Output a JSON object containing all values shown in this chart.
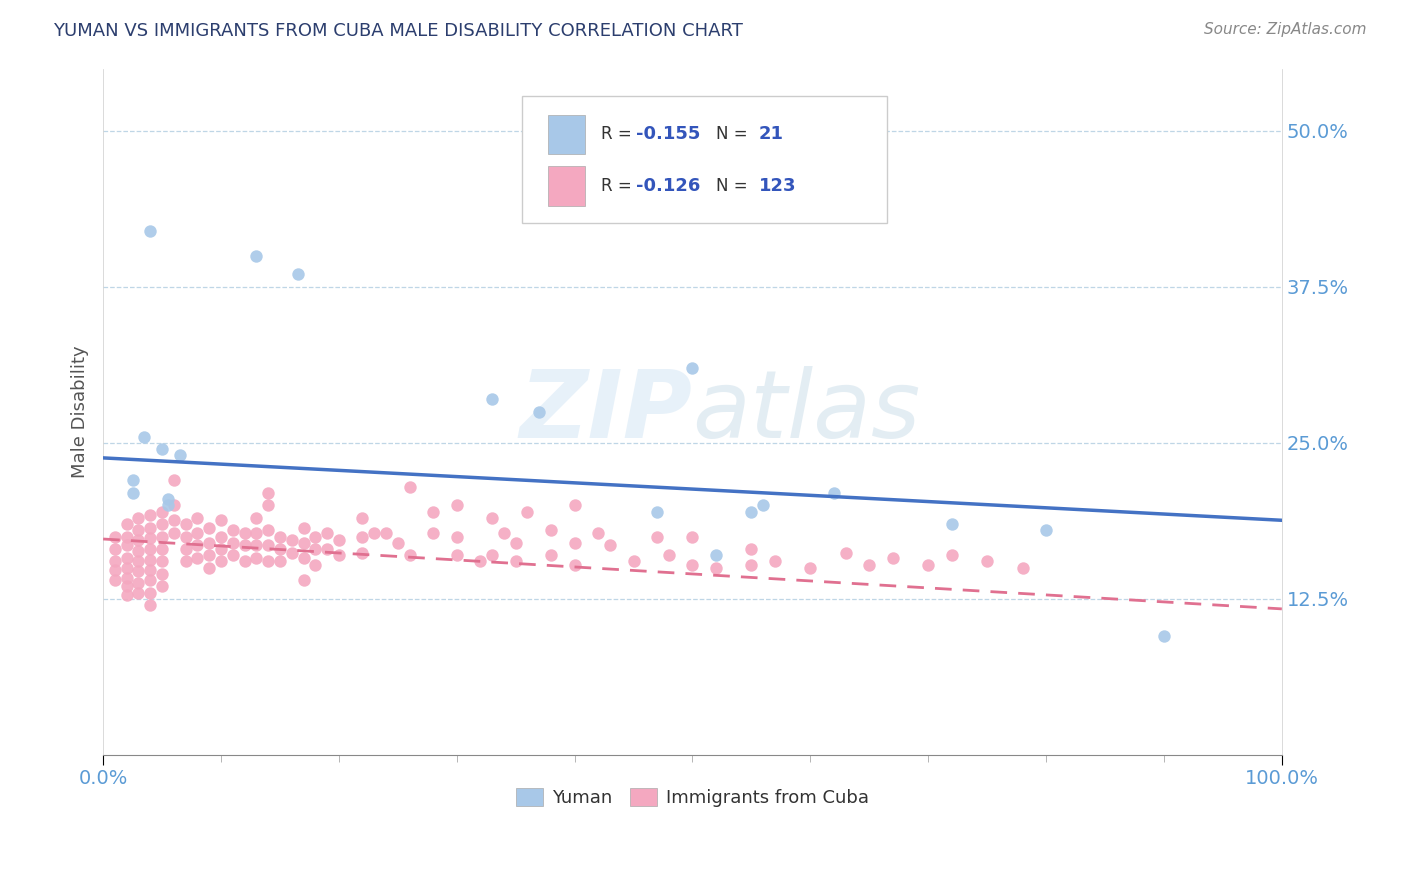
{
  "title": "YUMAN VS IMMIGRANTS FROM CUBA MALE DISABILITY CORRELATION CHART",
  "source": "Source: ZipAtlas.com",
  "ylabel": "Male Disability",
  "watermark": "ZIPatlas",
  "xlim": [
    0.0,
    1.0
  ],
  "ylim": [
    0.0,
    0.55
  ],
  "yticks": [
    0.125,
    0.25,
    0.375,
    0.5
  ],
  "ytick_labels": [
    "12.5%",
    "25.0%",
    "37.5%",
    "50.0%"
  ],
  "xtick_labels": [
    "0.0%",
    "100.0%"
  ],
  "blue_color": "#a8c8e8",
  "pink_color": "#f4a8c0",
  "blue_line_color": "#4472c4",
  "pink_line_color": "#e07090",
  "blue_scatter": [
    [
      0.04,
      0.42
    ],
    [
      0.13,
      0.4
    ],
    [
      0.165,
      0.385
    ],
    [
      0.5,
      0.31
    ],
    [
      0.33,
      0.285
    ],
    [
      0.37,
      0.275
    ],
    [
      0.035,
      0.255
    ],
    [
      0.05,
      0.245
    ],
    [
      0.065,
      0.24
    ],
    [
      0.025,
      0.22
    ],
    [
      0.025,
      0.21
    ],
    [
      0.055,
      0.205
    ],
    [
      0.055,
      0.2
    ],
    [
      0.47,
      0.195
    ],
    [
      0.56,
      0.2
    ],
    [
      0.62,
      0.21
    ],
    [
      0.55,
      0.195
    ],
    [
      0.72,
      0.185
    ],
    [
      0.8,
      0.18
    ],
    [
      0.52,
      0.16
    ],
    [
      0.9,
      0.095
    ]
  ],
  "pink_scatter": [
    [
      0.01,
      0.175
    ],
    [
      0.01,
      0.165
    ],
    [
      0.01,
      0.155
    ],
    [
      0.01,
      0.148
    ],
    [
      0.01,
      0.14
    ],
    [
      0.02,
      0.185
    ],
    [
      0.02,
      0.175
    ],
    [
      0.02,
      0.168
    ],
    [
      0.02,
      0.158
    ],
    [
      0.02,
      0.15
    ],
    [
      0.02,
      0.142
    ],
    [
      0.02,
      0.135
    ],
    [
      0.02,
      0.128
    ],
    [
      0.03,
      0.19
    ],
    [
      0.03,
      0.18
    ],
    [
      0.03,
      0.172
    ],
    [
      0.03,
      0.163
    ],
    [
      0.03,
      0.155
    ],
    [
      0.03,
      0.147
    ],
    [
      0.03,
      0.138
    ],
    [
      0.03,
      0.13
    ],
    [
      0.04,
      0.192
    ],
    [
      0.04,
      0.182
    ],
    [
      0.04,
      0.174
    ],
    [
      0.04,
      0.165
    ],
    [
      0.04,
      0.156
    ],
    [
      0.04,
      0.148
    ],
    [
      0.04,
      0.14
    ],
    [
      0.04,
      0.13
    ],
    [
      0.04,
      0.12
    ],
    [
      0.05,
      0.195
    ],
    [
      0.05,
      0.185
    ],
    [
      0.05,
      0.175
    ],
    [
      0.05,
      0.165
    ],
    [
      0.05,
      0.155
    ],
    [
      0.05,
      0.145
    ],
    [
      0.05,
      0.135
    ],
    [
      0.06,
      0.22
    ],
    [
      0.06,
      0.2
    ],
    [
      0.06,
      0.188
    ],
    [
      0.06,
      0.178
    ],
    [
      0.07,
      0.185
    ],
    [
      0.07,
      0.175
    ],
    [
      0.07,
      0.165
    ],
    [
      0.07,
      0.155
    ],
    [
      0.08,
      0.19
    ],
    [
      0.08,
      0.178
    ],
    [
      0.08,
      0.168
    ],
    [
      0.08,
      0.158
    ],
    [
      0.09,
      0.182
    ],
    [
      0.09,
      0.17
    ],
    [
      0.09,
      0.16
    ],
    [
      0.09,
      0.15
    ],
    [
      0.1,
      0.188
    ],
    [
      0.1,
      0.175
    ],
    [
      0.1,
      0.165
    ],
    [
      0.1,
      0.155
    ],
    [
      0.11,
      0.18
    ],
    [
      0.11,
      0.17
    ],
    [
      0.11,
      0.16
    ],
    [
      0.12,
      0.178
    ],
    [
      0.12,
      0.168
    ],
    [
      0.12,
      0.155
    ],
    [
      0.13,
      0.19
    ],
    [
      0.13,
      0.178
    ],
    [
      0.13,
      0.168
    ],
    [
      0.13,
      0.158
    ],
    [
      0.14,
      0.21
    ],
    [
      0.14,
      0.2
    ],
    [
      0.14,
      0.18
    ],
    [
      0.14,
      0.168
    ],
    [
      0.14,
      0.155
    ],
    [
      0.15,
      0.175
    ],
    [
      0.15,
      0.165
    ],
    [
      0.15,
      0.155
    ],
    [
      0.16,
      0.172
    ],
    [
      0.16,
      0.162
    ],
    [
      0.17,
      0.182
    ],
    [
      0.17,
      0.17
    ],
    [
      0.17,
      0.158
    ],
    [
      0.17,
      0.14
    ],
    [
      0.18,
      0.175
    ],
    [
      0.18,
      0.165
    ],
    [
      0.18,
      0.152
    ],
    [
      0.19,
      0.178
    ],
    [
      0.19,
      0.165
    ],
    [
      0.2,
      0.172
    ],
    [
      0.2,
      0.16
    ],
    [
      0.22,
      0.19
    ],
    [
      0.22,
      0.175
    ],
    [
      0.22,
      0.162
    ],
    [
      0.23,
      0.178
    ],
    [
      0.24,
      0.178
    ],
    [
      0.25,
      0.17
    ],
    [
      0.26,
      0.215
    ],
    [
      0.26,
      0.16
    ],
    [
      0.28,
      0.195
    ],
    [
      0.28,
      0.178
    ],
    [
      0.3,
      0.2
    ],
    [
      0.3,
      0.175
    ],
    [
      0.3,
      0.16
    ],
    [
      0.32,
      0.155
    ],
    [
      0.33,
      0.19
    ],
    [
      0.33,
      0.16
    ],
    [
      0.34,
      0.178
    ],
    [
      0.35,
      0.17
    ],
    [
      0.35,
      0.155
    ],
    [
      0.36,
      0.195
    ],
    [
      0.38,
      0.18
    ],
    [
      0.38,
      0.16
    ],
    [
      0.4,
      0.2
    ],
    [
      0.4,
      0.17
    ],
    [
      0.4,
      0.152
    ],
    [
      0.42,
      0.178
    ],
    [
      0.43,
      0.168
    ],
    [
      0.45,
      0.155
    ],
    [
      0.47,
      0.175
    ],
    [
      0.48,
      0.16
    ],
    [
      0.5,
      0.175
    ],
    [
      0.5,
      0.152
    ],
    [
      0.52,
      0.15
    ],
    [
      0.55,
      0.165
    ],
    [
      0.55,
      0.152
    ],
    [
      0.57,
      0.155
    ],
    [
      0.6,
      0.15
    ],
    [
      0.63,
      0.162
    ],
    [
      0.65,
      0.152
    ],
    [
      0.67,
      0.158
    ],
    [
      0.7,
      0.152
    ],
    [
      0.72,
      0.16
    ],
    [
      0.75,
      0.155
    ],
    [
      0.78,
      0.15
    ]
  ],
  "blue_trendline": [
    [
      0.0,
      0.238
    ],
    [
      1.0,
      0.188
    ]
  ],
  "pink_trendline": [
    [
      0.0,
      0.173
    ],
    [
      1.0,
      0.117
    ]
  ]
}
